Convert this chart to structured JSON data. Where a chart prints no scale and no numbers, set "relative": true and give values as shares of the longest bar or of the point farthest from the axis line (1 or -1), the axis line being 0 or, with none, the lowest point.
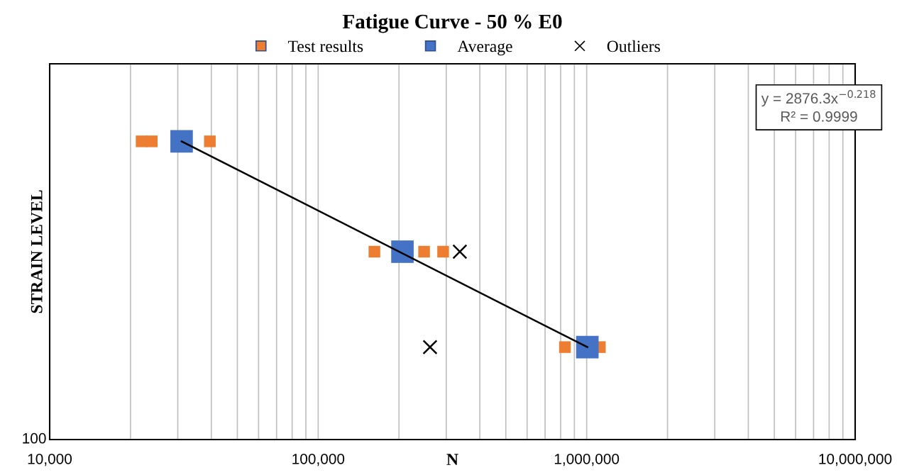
{
  "chart_data": {
    "type": "scatter",
    "title": "Fatigue Curve - 50 % E0",
    "xlabel": "N",
    "ylabel": "STRAIN LEVEL",
    "log": "x",
    "xlim": [
      10000,
      10000000
    ],
    "relative": true,
    "xticks": [
      {
        "value": 10000,
        "label": "10,000"
      },
      {
        "value": 20000,
        "label": null
      },
      {
        "value": 30000,
        "label": null
      },
      {
        "value": 40000,
        "label": null
      },
      {
        "value": 50000,
        "label": null
      },
      {
        "value": 60000,
        "label": null
      },
      {
        "value": 70000,
        "label": null
      },
      {
        "value": 80000,
        "label": null
      },
      {
        "value": 90000,
        "label": null
      },
      {
        "value": 100000,
        "label": "100,000"
      },
      {
        "value": 200000,
        "label": null
      },
      {
        "value": 300000,
        "label": null
      },
      {
        "value": 400000,
        "label": null
      },
      {
        "value": 500000,
        "label": null
      },
      {
        "value": 600000,
        "label": null
      },
      {
        "value": 700000,
        "label": null
      },
      {
        "value": 800000,
        "label": null
      },
      {
        "value": 900000,
        "label": null
      },
      {
        "value": 1000000,
        "label": "1,000,000"
      },
      {
        "value": 2000000,
        "label": null
      },
      {
        "value": 3000000,
        "label": null
      },
      {
        "value": 4000000,
        "label": null
      },
      {
        "value": 5000000,
        "label": null
      },
      {
        "value": 6000000,
        "label": null
      },
      {
        "value": 7000000,
        "label": null
      },
      {
        "value": 8000000,
        "label": null
      },
      {
        "value": 9000000,
        "label": null
      },
      {
        "value": 10000000,
        "label": "10,000,000"
      }
    ],
    "grid": "x",
    "legend": "top",
    "series": [
      {
        "name": "Test results",
        "color": "#ed7d31",
        "marker": "square",
        "x": [
          22000,
          24000,
          39500,
          162000,
          248000,
          292000,
          830000,
          1120000
        ],
        "values": [
          1,
          1,
          1,
          0.63,
          0.63,
          0.63,
          0.31,
          0.31
        ]
      },
      {
        "name": "Average",
        "color": "#4472c4",
        "marker": "square",
        "x": [
          31000,
          206000,
          1006000
        ],
        "values": [
          1,
          0.63,
          0.31
        ]
      },
      {
        "name": "Outliers",
        "color": "#000000",
        "marker": "cross",
        "x": [
          337000,
          261000
        ],
        "values": [
          0.63,
          0.31
        ]
      },
      {
        "type": "line",
        "color": "#000000",
        "marker": "none",
        "line_style": "solid",
        "x": [
          31000,
          1006000
        ],
        "values": [
          1,
          0.31
        ]
      }
    ],
    "annotations": [
      "y = 2876.3x$^{−0.218}$",
      "R² = 0.9999",
      "100"
    ]
  }
}
